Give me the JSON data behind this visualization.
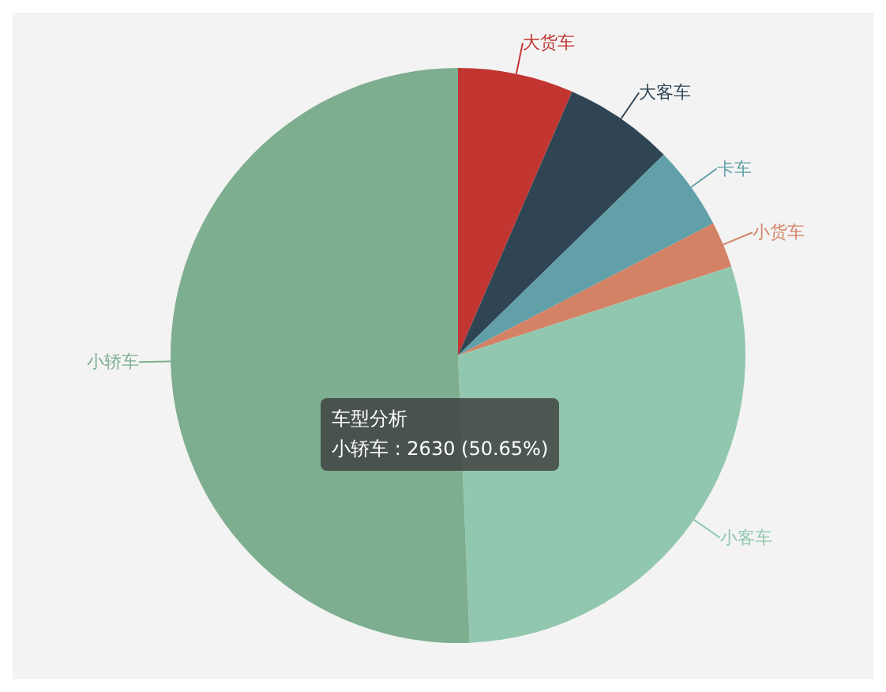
{
  "chart_data": {
    "type": "pie",
    "categories": [
      "大货车",
      "大客车",
      "卡车",
      "小货车",
      "小客车",
      "小轿车"
    ],
    "values": [
      6.5,
      6.2,
      4.7,
      2.6,
      29.35,
      50.65
    ],
    "colors": [
      "#c23531",
      "#2f4554",
      "#61a0a8",
      "#d48265",
      "#91c7ae",
      "#7eae90"
    ],
    "annotations": [
      "车型分析",
      "小轿车 : 2630 (50.65%)"
    ]
  }
}
